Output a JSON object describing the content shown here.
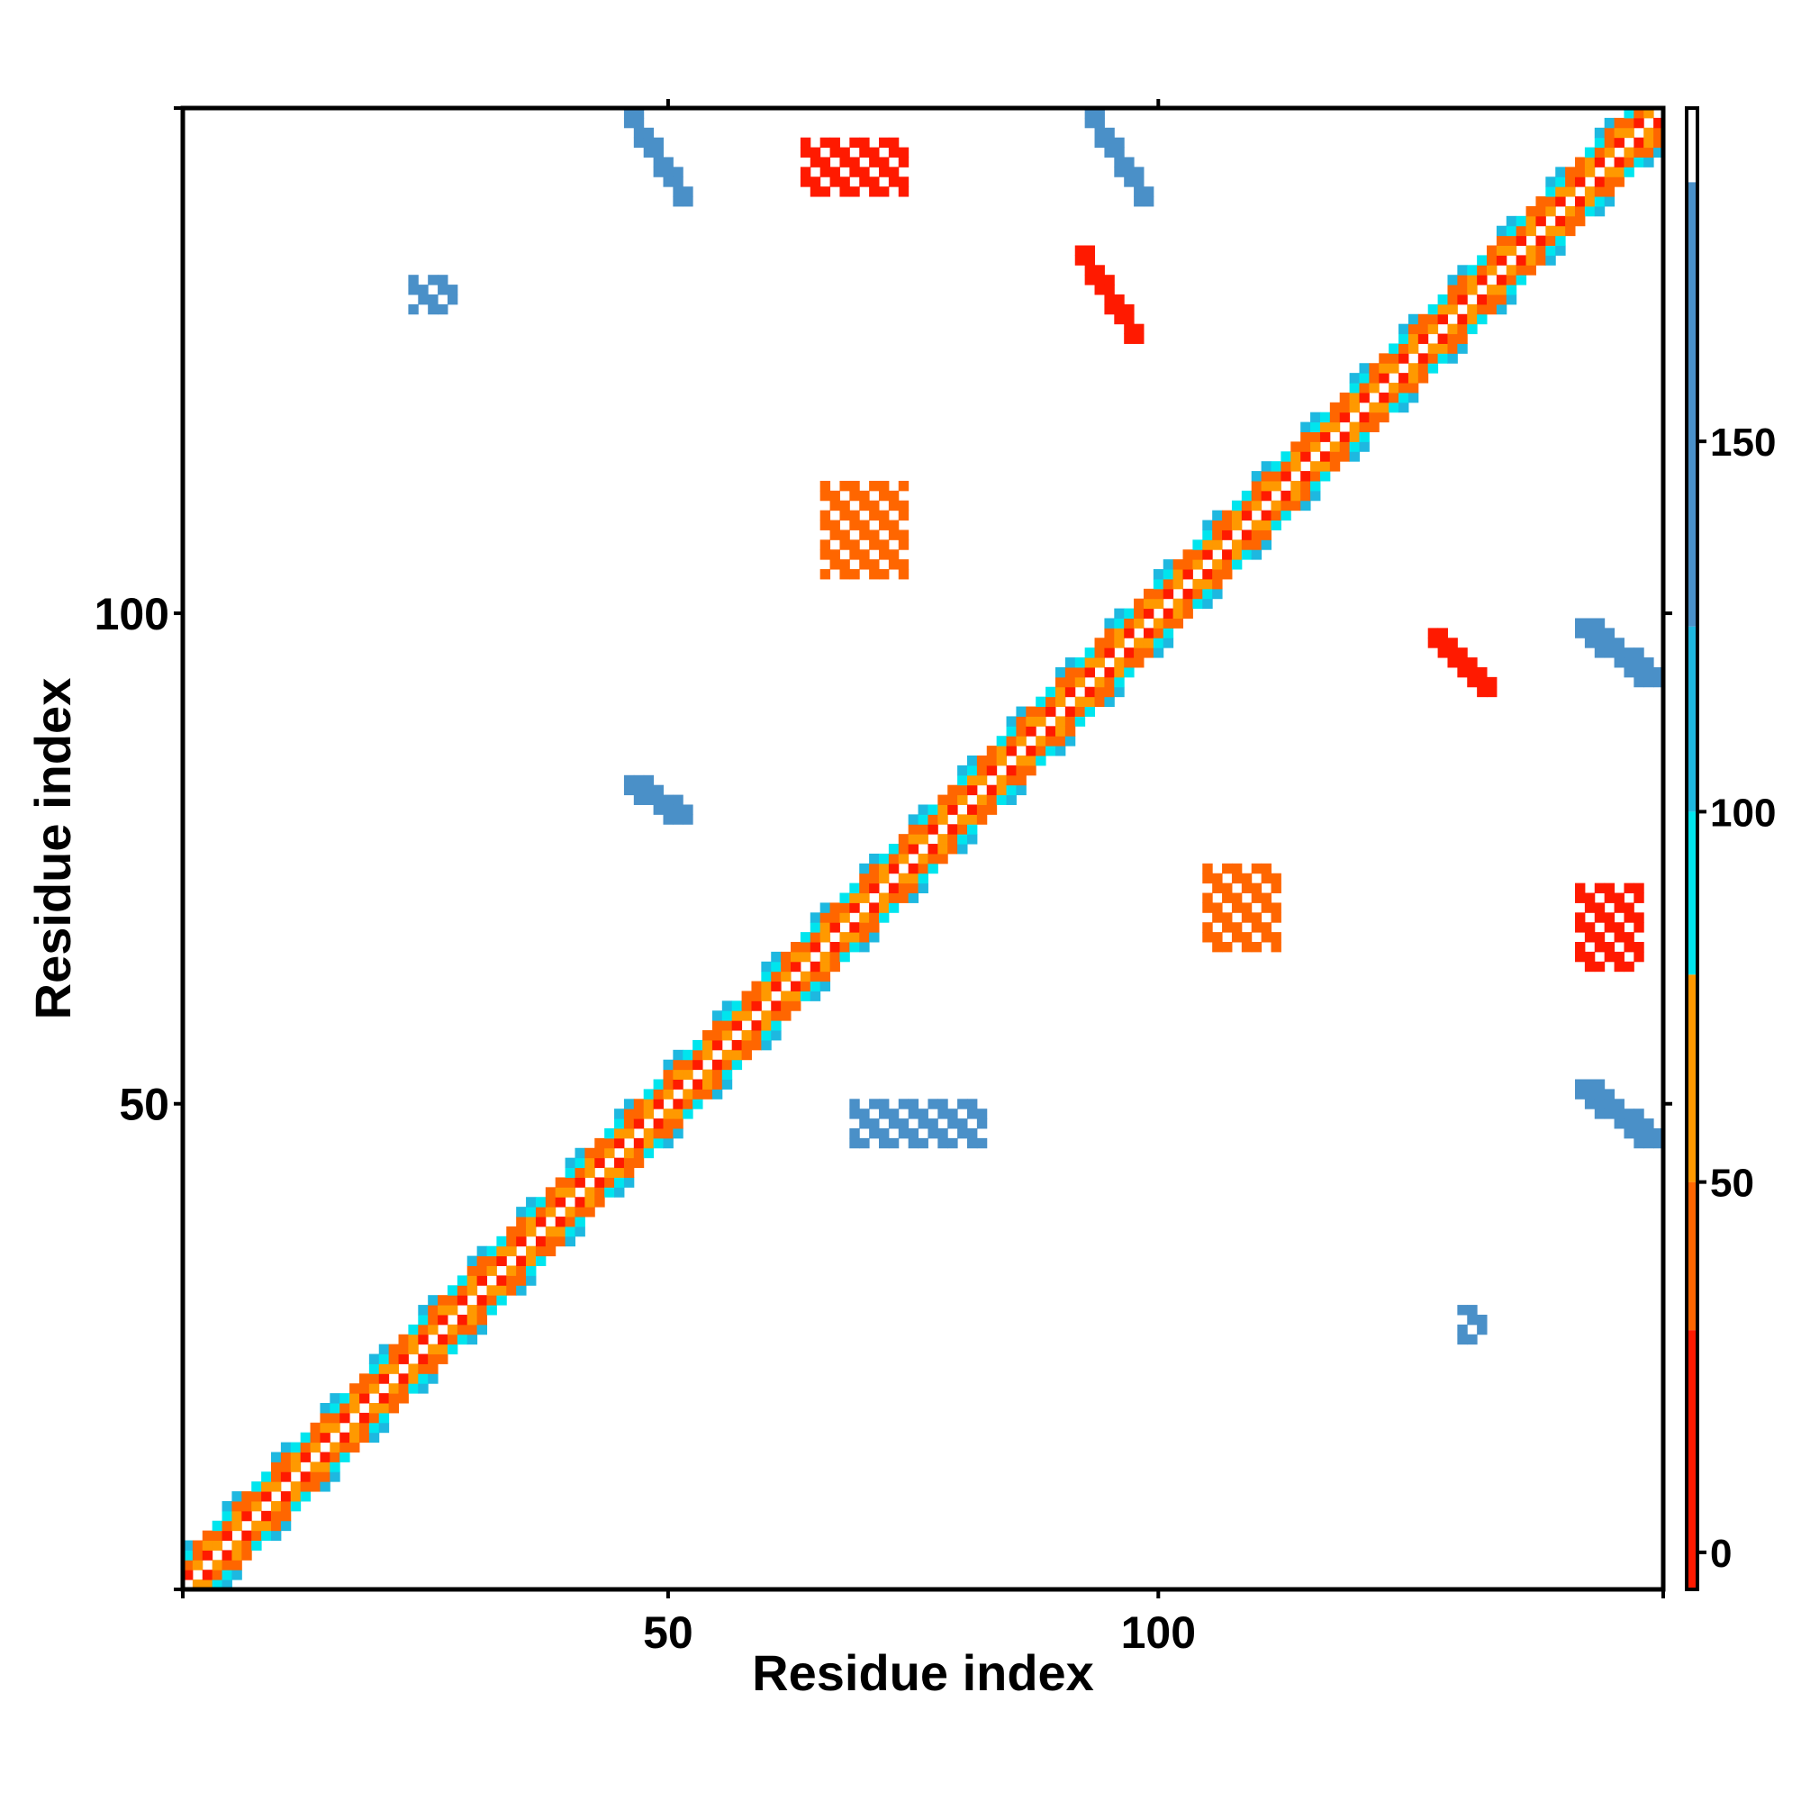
{
  "chart_data": {
    "type": "heatmap",
    "title": "",
    "xlabel": "Residue index",
    "ylabel": "Residue index",
    "xlim": [
      1,
      151
    ],
    "ylim": [
      1,
      151
    ],
    "x_ticks": [
      50,
      100
    ],
    "y_ticks": [
      50,
      100
    ],
    "colorbar": {
      "ticks": [
        0,
        50,
        100,
        150
      ],
      "range": [
        -5,
        195
      ],
      "bins": [
        {
          "from": -5,
          "to": 30,
          "color": "#ff1a00"
        },
        {
          "from": 30,
          "to": 50,
          "color": "#ff6600"
        },
        {
          "from": 50,
          "to": 78,
          "color": "#ff9900"
        },
        {
          "from": 78,
          "to": 100,
          "color": "#00e5ee"
        },
        {
          "from": 100,
          "to": 125,
          "color": "#1eb8e0"
        },
        {
          "from": 125,
          "to": 185,
          "color": "#4a90c8"
        },
        {
          "from": 185,
          "to": 195,
          "color": "#ffffff"
        }
      ]
    },
    "regions": [
      {
        "x0": 1,
        "x1": 151,
        "y0": 1,
        "y1": 151,
        "diag": true,
        "value": 40,
        "note_ignore": true
      },
      {
        "x": [
          46,
          52
        ],
        "y": [
          142,
          151
        ],
        "diag": "anti",
        "value": 155
      },
      {
        "x": [
          93,
          99
        ],
        "y": [
          142,
          151
        ],
        "diag": "anti",
        "value": 155
      },
      {
        "x": [
          64,
          74
        ],
        "y": [
          143,
          148
        ],
        "value": 20
      },
      {
        "x": [
          92,
          98
        ],
        "y": [
          128,
          137
        ],
        "diag": "anti",
        "value": 10
      },
      {
        "x": [
          128,
          134
        ],
        "y": [
          92,
          98
        ],
        "diag": "anti",
        "value": 10
      },
      {
        "x": [
          143,
          151
        ],
        "y": [
          93,
          99
        ],
        "diag": "anti",
        "value": 155
      },
      {
        "x": [
          143,
          151
        ],
        "y": [
          46,
          52
        ],
        "diag": "anti",
        "value": 155
      },
      {
        "x": [
          46,
          52
        ],
        "y": [
          79,
          83
        ],
        "diag": "anti",
        "value": 155
      },
      {
        "x": [
          69,
          82
        ],
        "y": [
          46,
          50
        ],
        "value": 160
      },
      {
        "x": [
          66,
          74
        ],
        "y": [
          104,
          113
        ],
        "value": 45
      },
      {
        "x": [
          105,
          112
        ],
        "y": [
          66,
          74
        ],
        "value": 45
      },
      {
        "x": [
          143,
          149
        ],
        "y": [
          64,
          72
        ],
        "value": 20
      },
      {
        "x": [
          131,
          133
        ],
        "y": [
          26,
          29
        ],
        "value": 160
      },
      {
        "x": [
          24,
          28
        ],
        "y": [
          131,
          134
        ],
        "value": 160
      }
    ]
  }
}
